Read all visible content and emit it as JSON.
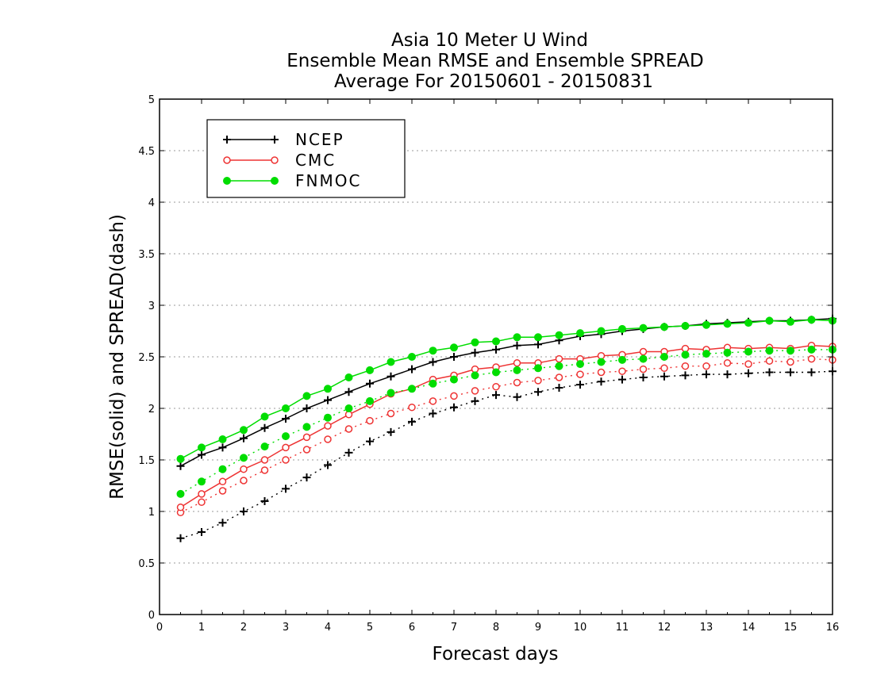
{
  "chart_data": {
    "type": "line",
    "title_lines": [
      "Asia 10 Meter U Wind",
      "Ensemble Mean RMSE and Ensemble SPREAD",
      "Average For 20150601 - 20150831"
    ],
    "xlabel": "Forecast days",
    "ylabel": "RMSE(solid) and SPREAD(dash)",
    "xlim": [
      0,
      16
    ],
    "ylim": [
      0,
      5
    ],
    "x_ticks": [
      "0",
      "1",
      "2",
      "3",
      "4",
      "5",
      "6",
      "7",
      "8",
      "9",
      "10",
      "11",
      "12",
      "13",
      "14",
      "15",
      "16"
    ],
    "y_ticks": [
      "0",
      "0.5",
      "1",
      "1.5",
      "2",
      "2.5",
      "3",
      "3.5",
      "4",
      "4.5",
      "5"
    ],
    "grid": "horizontal dotted",
    "legend_position": "top-left",
    "x": [
      0.5,
      1,
      1.5,
      2,
      2.5,
      3,
      3.5,
      4,
      4.5,
      5,
      5.5,
      6,
      6.5,
      7,
      7.5,
      8,
      8.5,
      9,
      9.5,
      10,
      10.5,
      11,
      11.5,
      12,
      12.5,
      13,
      13.5,
      14,
      14.5,
      15,
      15.5,
      16
    ],
    "series": [
      {
        "name": "NCEP",
        "color": "#000000",
        "marker": "plus",
        "rmse": [
          1.44,
          1.55,
          1.62,
          1.71,
          1.81,
          1.9,
          2.0,
          2.08,
          2.16,
          2.24,
          2.31,
          2.38,
          2.45,
          2.5,
          2.54,
          2.57,
          2.61,
          2.62,
          2.66,
          2.7,
          2.72,
          2.75,
          2.77,
          2.79,
          2.8,
          2.82,
          2.83,
          2.84,
          2.85,
          2.85,
          2.86,
          2.87
        ],
        "spread": [
          0.74,
          0.8,
          0.89,
          1.0,
          1.1,
          1.22,
          1.33,
          1.45,
          1.57,
          1.68,
          1.77,
          1.87,
          1.95,
          2.01,
          2.07,
          2.13,
          2.11,
          2.16,
          2.2,
          2.23,
          2.26,
          2.28,
          2.3,
          2.31,
          2.32,
          2.33,
          2.33,
          2.34,
          2.35,
          2.35,
          2.35,
          2.36
        ]
      },
      {
        "name": "CMC",
        "color": "#ee3333",
        "marker": "open-circle",
        "rmse": [
          1.04,
          1.17,
          1.29,
          1.41,
          1.5,
          1.62,
          1.72,
          1.83,
          1.94,
          2.04,
          2.14,
          2.19,
          2.28,
          2.32,
          2.38,
          2.4,
          2.44,
          2.44,
          2.48,
          2.48,
          2.51,
          2.52,
          2.55,
          2.55,
          2.58,
          2.57,
          2.59,
          2.58,
          2.59,
          2.58,
          2.61,
          2.6
        ],
        "spread": [
          0.99,
          1.09,
          1.2,
          1.3,
          1.4,
          1.5,
          1.6,
          1.7,
          1.8,
          1.88,
          1.95,
          2.01,
          2.07,
          2.12,
          2.17,
          2.21,
          2.25,
          2.27,
          2.3,
          2.33,
          2.35,
          2.36,
          2.38,
          2.39,
          2.41,
          2.41,
          2.44,
          2.43,
          2.46,
          2.45,
          2.48,
          2.47
        ]
      },
      {
        "name": "FNMOC",
        "color": "#00dd00",
        "marker": "filled-circle",
        "rmse": [
          1.51,
          1.62,
          1.7,
          1.79,
          1.92,
          2.0,
          2.12,
          2.19,
          2.3,
          2.37,
          2.45,
          2.5,
          2.56,
          2.59,
          2.64,
          2.65,
          2.69,
          2.69,
          2.71,
          2.73,
          2.75,
          2.77,
          2.78,
          2.79,
          2.8,
          2.81,
          2.82,
          2.83,
          2.85,
          2.84,
          2.86,
          2.85
        ],
        "spread": [
          1.17,
          1.29,
          1.41,
          1.52,
          1.63,
          1.73,
          1.82,
          1.91,
          2.0,
          2.07,
          2.15,
          2.19,
          2.24,
          2.28,
          2.32,
          2.35,
          2.37,
          2.39,
          2.41,
          2.43,
          2.45,
          2.47,
          2.48,
          2.5,
          2.52,
          2.53,
          2.54,
          2.55,
          2.56,
          2.56,
          2.57,
          2.57
        ]
      }
    ]
  }
}
